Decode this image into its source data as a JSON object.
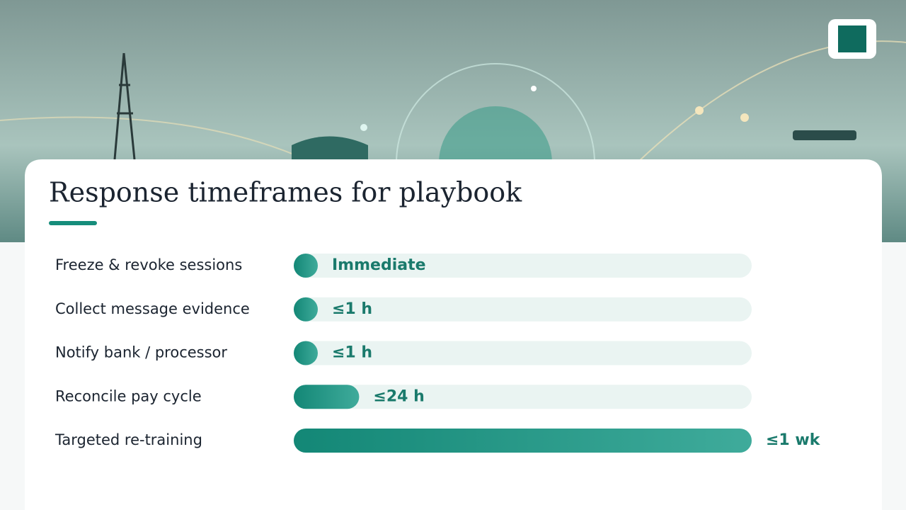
{
  "chart_data": {
    "type": "bar",
    "orientation": "horizontal",
    "title": "Response timeframes for playbook",
    "categories": [
      "Freeze & revoke sessions",
      "Collect message evidence",
      "Notify bank / processor",
      "Reconcile pay cycle",
      "Targeted re-training"
    ],
    "values": [
      0,
      1,
      1,
      24,
      168
    ],
    "value_labels": [
      "Immediate",
      "≤1 h",
      "≤1 h",
      "≤24 h",
      "≤1 wk"
    ],
    "color": "#168d7b"
  }
}
